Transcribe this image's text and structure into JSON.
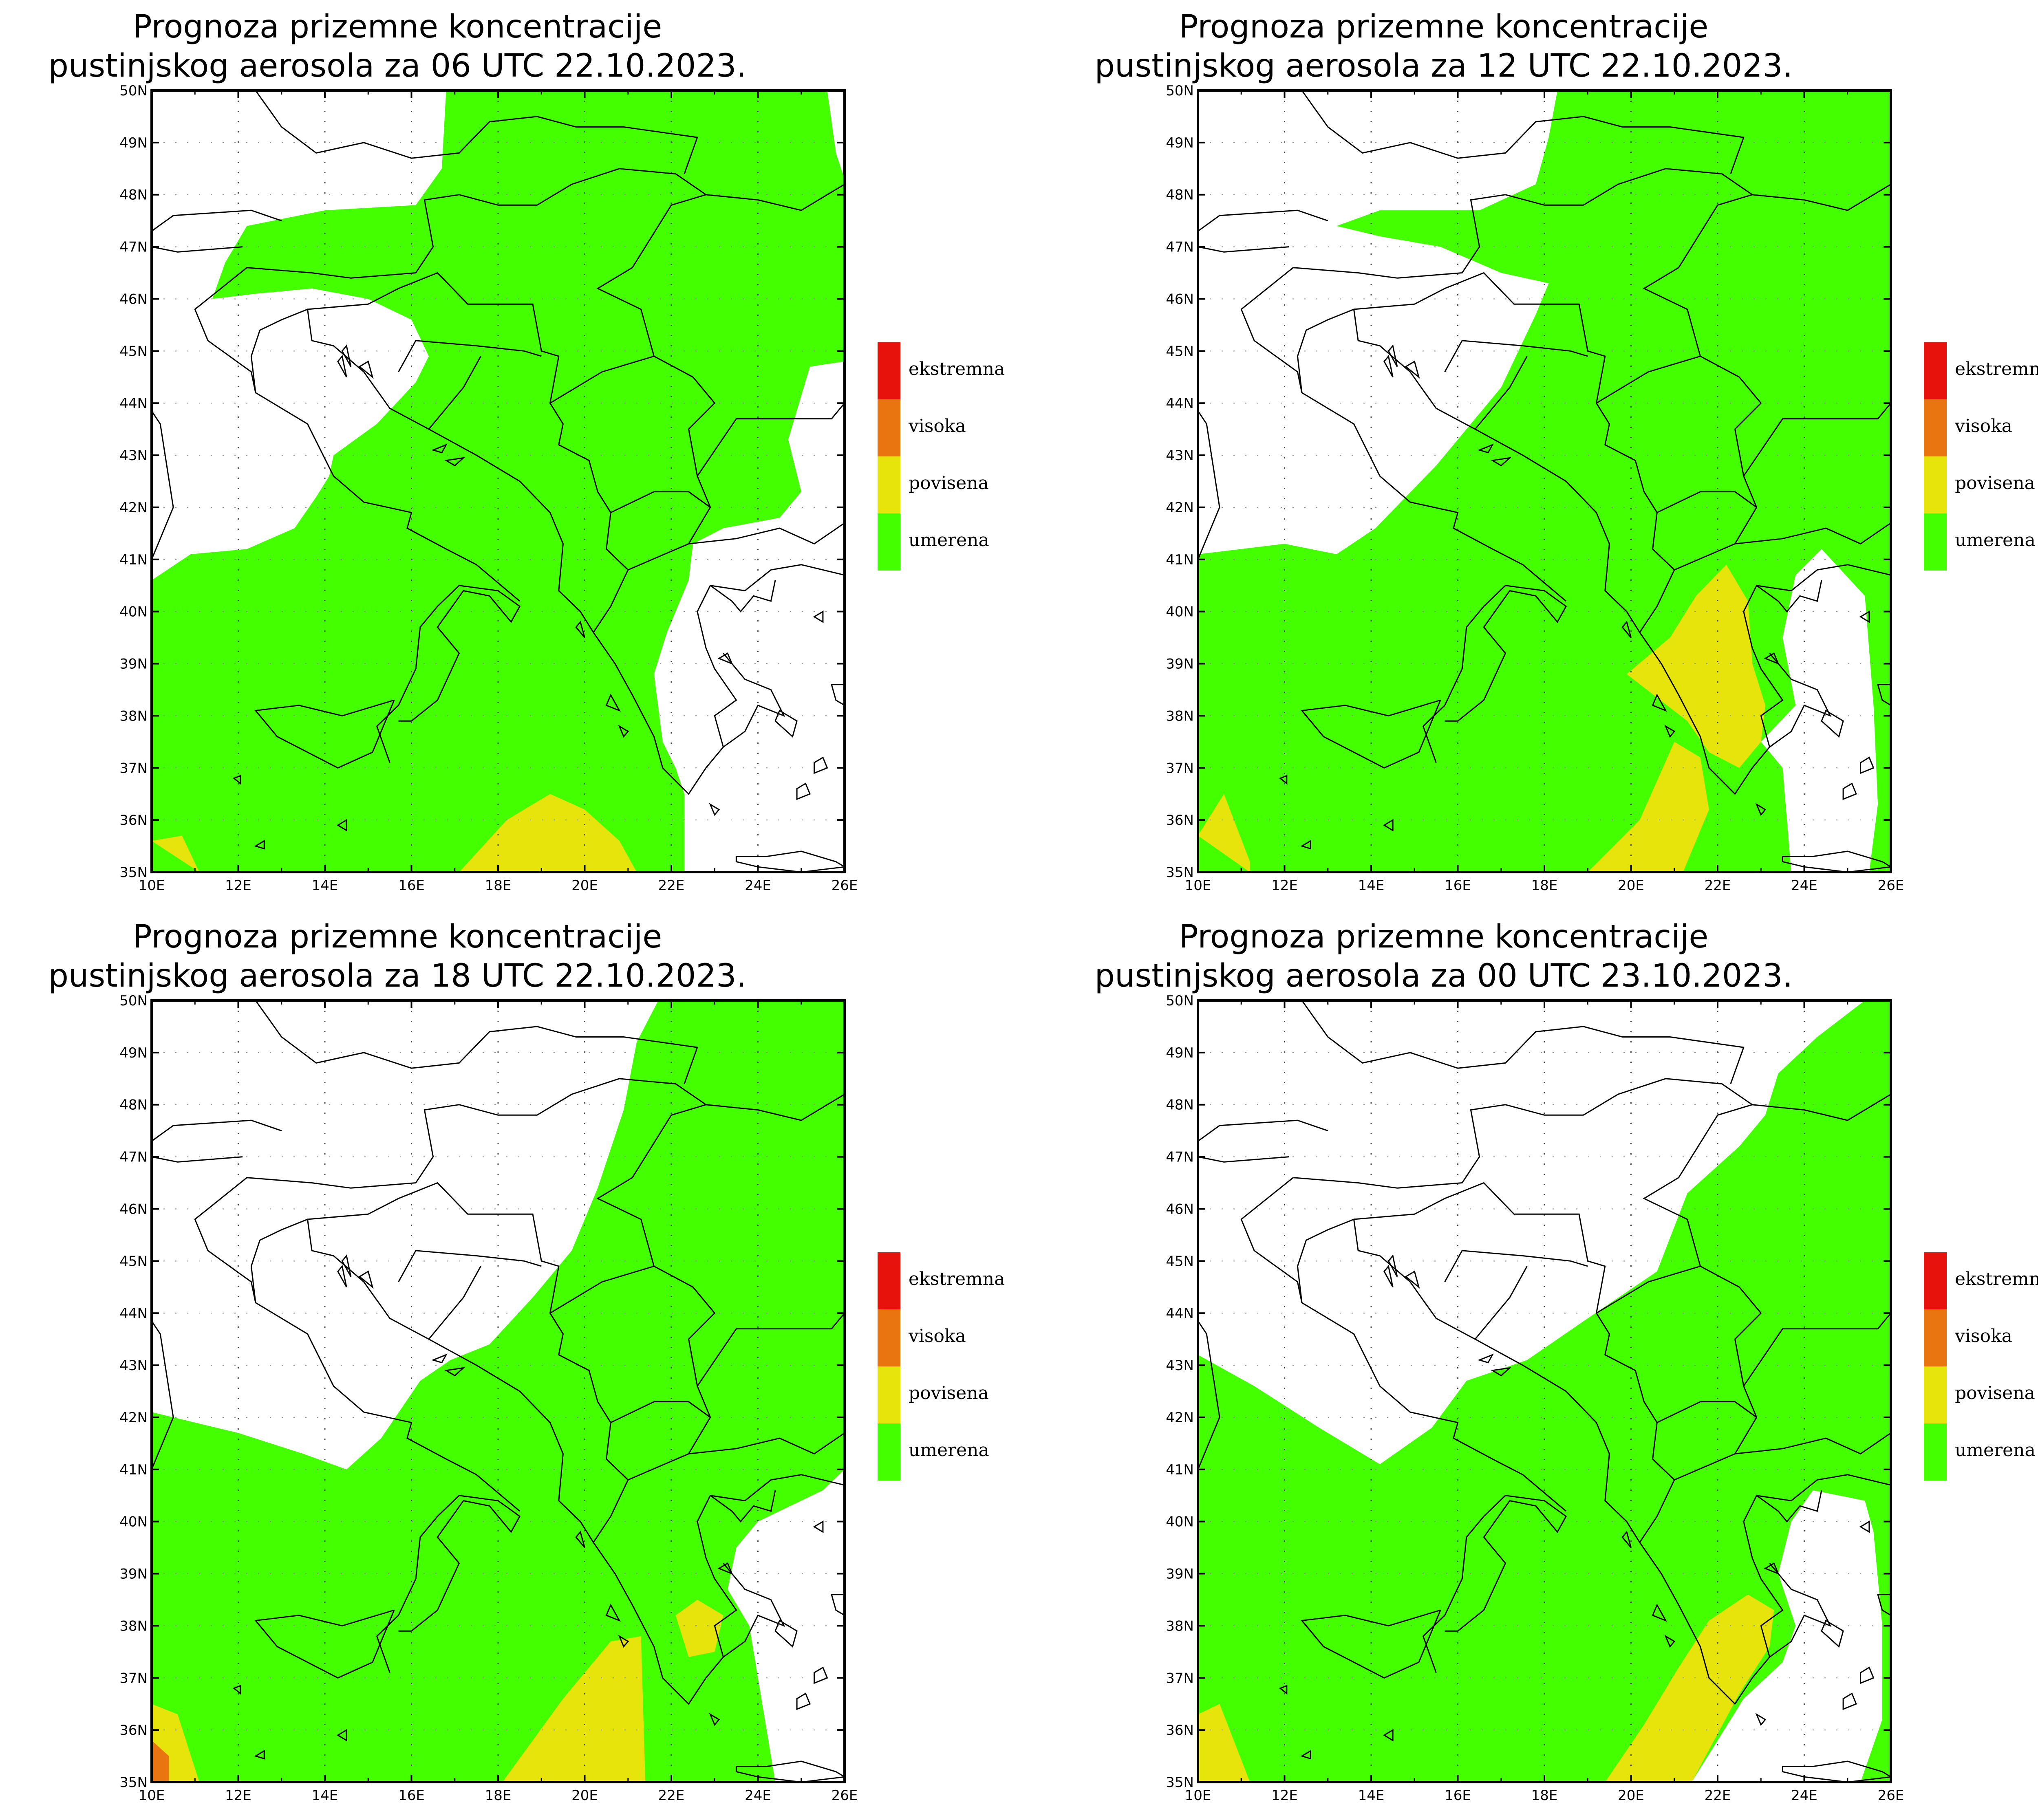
{
  "panels": [
    {
      "title_line1": "Prognoza prizemne koncentracije",
      "title_line2": "pustinjskog aerosola za 06 UTC 22.10.2023."
    },
    {
      "title_line1": "Prognoza prizemne koncentracije",
      "title_line2": "pustinjskog aerosola za 12 UTC 22.10.2023."
    },
    {
      "title_line1": "Prognoza prizemne koncentracije",
      "title_line2": "pustinjskog aerosola za 18 UTC 22.10.2023."
    },
    {
      "title_line1": "Prognoza prizemne koncentracije",
      "title_line2": "pustinjskog aerosola za 00 UTC 23.10.2023."
    }
  ],
  "legend": [
    {
      "label": "ekstremna",
      "color": "#e8120c"
    },
    {
      "label": "visoka",
      "color": "#e8750f"
    },
    {
      "label": "povisena",
      "color": "#e6e40a"
    },
    {
      "label": "umerena",
      "color": "#44ff00"
    }
  ],
  "map": {
    "lat_labels": [
      "50N",
      "49N",
      "48N",
      "47N",
      "46N",
      "45N",
      "44N",
      "43N",
      "42N",
      "41N",
      "40N",
      "39N",
      "38N",
      "37N",
      "36N",
      "35N"
    ],
    "lon_labels": [
      "10E",
      "12E",
      "14E",
      "16E",
      "18E",
      "20E",
      "22E",
      "24E",
      "26E"
    ],
    "lat_range": [
      35,
      50
    ],
    "lon_range": [
      10,
      26
    ]
  }
}
